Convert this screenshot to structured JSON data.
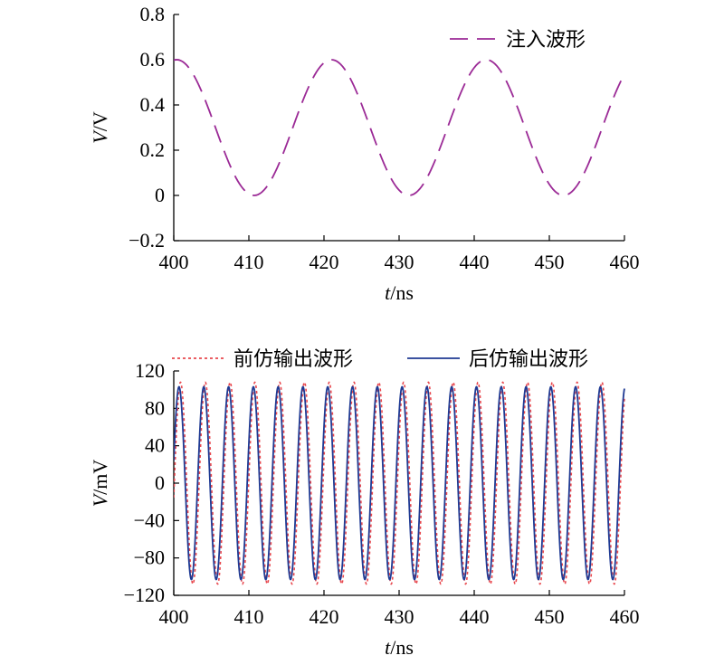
{
  "chart_data": [
    {
      "type": "line",
      "title": "",
      "xlabel": {
        "var": "t",
        "unit": "/ns"
      },
      "ylabel": {
        "var": "V",
        "unit": "/V"
      },
      "xlim": [
        400,
        460
      ],
      "ylim": [
        -0.2,
        0.8
      ],
      "xticks": [
        "400",
        "410",
        "420",
        "430",
        "440",
        "450",
        "460"
      ],
      "yticks": [
        "0.8",
        "0.6",
        "0.4",
        "0.2",
        "0",
        "−0.2"
      ],
      "grid": false,
      "legend": "top-right",
      "series": [
        {
          "name": "注入波形",
          "style": "dashed",
          "color": "#9b2a96",
          "wave": {
            "offset": 0.3,
            "amplitude": 0.3,
            "period_ns": 20.6,
            "phase_ns": 400.4
          }
        }
      ]
    },
    {
      "type": "line",
      "title": "",
      "xlabel": {
        "var": "t",
        "unit": "/ns"
      },
      "ylabel": {
        "var": "V",
        "unit": "/mV"
      },
      "xlim": [
        400,
        460
      ],
      "ylim": [
        -120,
        120
      ],
      "xticks": [
        "400",
        "410",
        "420",
        "430",
        "440",
        "450",
        "460"
      ],
      "yticks": [
        "120",
        "80",
        "40",
        "0",
        "−40",
        "−80",
        "−120"
      ],
      "grid": false,
      "legend": "top",
      "series": [
        {
          "name": "前仿输出波形",
          "style": "dotted",
          "color": "#e8474d",
          "wave": {
            "offset": 0,
            "amplitude": 108,
            "period_ns": 3.3,
            "phase_ns": 400.9
          }
        },
        {
          "name": "后仿输出波形",
          "style": "solid",
          "color": "#1f3a93",
          "wave": {
            "offset": 0,
            "amplitude": 103,
            "period_ns": 3.3,
            "phase_ns": 400.7
          }
        }
      ]
    }
  ]
}
